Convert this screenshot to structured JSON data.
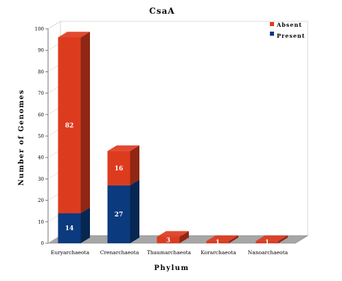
{
  "chart_data": {
    "type": "bar",
    "stacked": true,
    "title": "CsaA",
    "xlabel": "Phylum",
    "ylabel": "Number of Genomes",
    "ylim": [
      0,
      100
    ],
    "yticks": [
      0,
      10,
      20,
      30,
      40,
      50,
      60,
      70,
      80,
      90,
      100
    ],
    "categories": [
      "Euryarchaeota",
      "Crenarchaeota",
      "Thaumarchaeota",
      "Korarchaeota",
      "Nanoarchaeota"
    ],
    "series": [
      {
        "name": "Present",
        "values": [
          14,
          27,
          0,
          0,
          0
        ],
        "labels": [
          "14",
          "27",
          "",
          "",
          ""
        ],
        "color": "#0b3a7e"
      },
      {
        "name": "Absent",
        "values": [
          82,
          16,
          3,
          1,
          1
        ],
        "labels": [
          "82",
          "16",
          "3",
          "1",
          "1"
        ],
        "color": "#dd3b1e"
      }
    ],
    "legend": {
      "position": "top-right",
      "order": [
        "Absent",
        "Present"
      ]
    },
    "grid": false,
    "style": "3d"
  }
}
